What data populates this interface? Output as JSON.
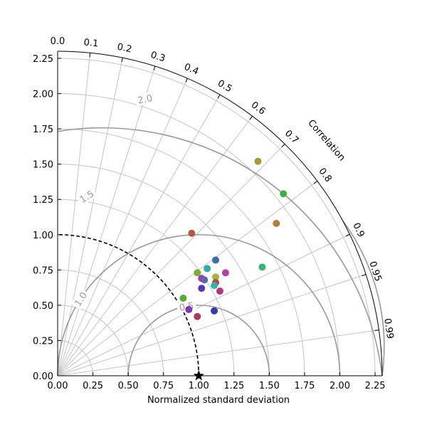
{
  "chart_data": {
    "type": "scatter",
    "subtype": "taylor-diagram",
    "title": "",
    "xlabel": "Normalized standard deviation",
    "angle_label": "Correlation",
    "std_range": [
      0,
      2.3
    ],
    "x_ticks": [
      "0.00",
      "0.25",
      "0.50",
      "0.75",
      "1.00",
      "1.25",
      "1.50",
      "1.75",
      "2.00",
      "2.25"
    ],
    "y_ticks": [
      "0.00",
      "0.25",
      "0.50",
      "0.75",
      "1.00",
      "1.25",
      "1.50",
      "1.75",
      "2.00",
      "2.25"
    ],
    "correlation_ticks": [
      "0.0",
      "0.1",
      "0.2",
      "0.3",
      "0.4",
      "0.5",
      "0.6",
      "0.7",
      "0.8",
      "0.9",
      "0.95",
      "0.99"
    ],
    "grid": true,
    "reference": {
      "std": 1.0,
      "correlation": 1.0,
      "marker": "star"
    },
    "rms_contours": [
      0.5,
      1.0,
      1.5,
      2.0
    ],
    "rms_contour_labels": [
      "0.5",
      "1.0",
      "1.5",
      "2.0"
    ],
    "points": [
      {
        "x": 1.42,
        "y": 1.52,
        "color": "#a89a3a"
      },
      {
        "x": 1.6,
        "y": 1.29,
        "color": "#3fae48"
      },
      {
        "x": 1.55,
        "y": 1.08,
        "color": "#b07e3c"
      },
      {
        "x": 0.95,
        "y": 1.01,
        "color": "#aa5a45"
      },
      {
        "x": 1.12,
        "y": 0.82,
        "color": "#3a6eaa"
      },
      {
        "x": 1.06,
        "y": 0.76,
        "color": "#3aa8a0"
      },
      {
        "x": 1.19,
        "y": 0.73,
        "color": "#b045a0"
      },
      {
        "x": 1.45,
        "y": 0.77,
        "color": "#3cb078"
      },
      {
        "x": 0.99,
        "y": 0.73,
        "color": "#7aae3a"
      },
      {
        "x": 1.12,
        "y": 0.7,
        "color": "#a8b040"
      },
      {
        "x": 1.02,
        "y": 0.69,
        "color": "#aa3aa8"
      },
      {
        "x": 1.04,
        "y": 0.68,
        "color": "#5a6aaa"
      },
      {
        "x": 1.12,
        "y": 0.66,
        "color": "#b04848"
      },
      {
        "x": 1.11,
        "y": 0.64,
        "color": "#3ab0a8"
      },
      {
        "x": 1.02,
        "y": 0.62,
        "color": "#5a3aaa"
      },
      {
        "x": 1.15,
        "y": 0.6,
        "color": "#aa3a7a"
      },
      {
        "x": 0.89,
        "y": 0.55,
        "color": "#5aaa3a"
      },
      {
        "x": 0.93,
        "y": 0.47,
        "color": "#7a3aaa"
      },
      {
        "x": 1.11,
        "y": 0.46,
        "color": "#3a3aaa"
      },
      {
        "x": 0.99,
        "y": 0.42,
        "color": "#aa3a5a"
      }
    ]
  }
}
